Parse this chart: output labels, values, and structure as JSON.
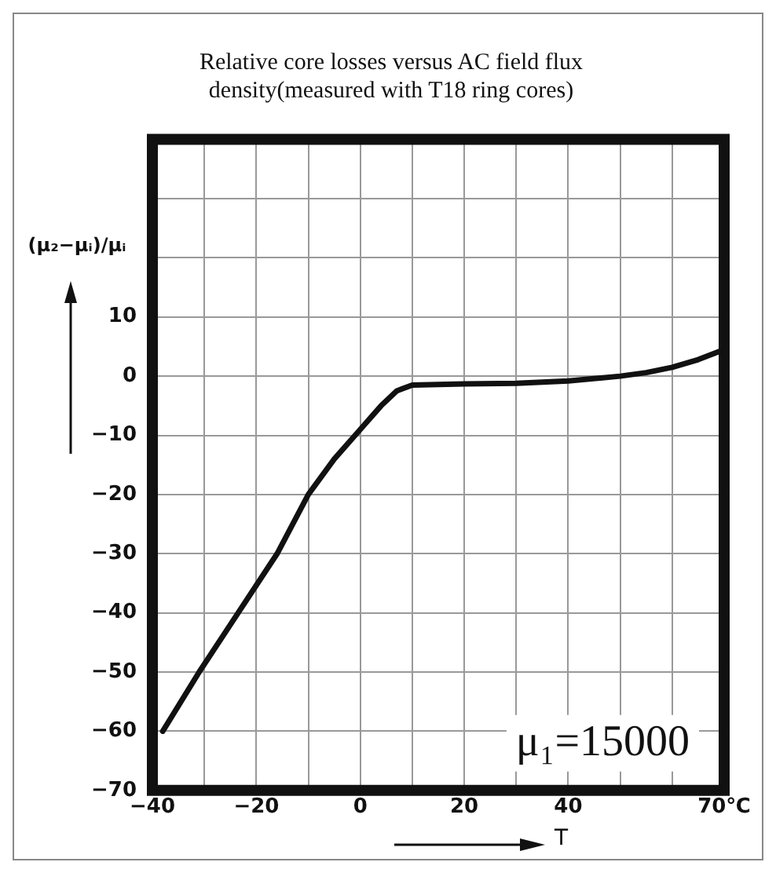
{
  "chart_data": {
    "type": "line",
    "title": "Relative core losses versus AC field flux density(measured with T18 ring cores)",
    "ylabel": "(μ₂−μᵢ)/μᵢ",
    "xlabel": "T",
    "x": [
      -38,
      -31,
      -23.5,
      -16,
      -10,
      -5,
      0,
      4,
      7,
      10,
      20,
      30,
      40,
      50,
      55,
      60,
      65,
      70
    ],
    "series": [
      {
        "color": "#111111",
        "values": [
          -60,
          -50,
          -40,
          -30,
          -20,
          -14,
          -9,
          -5,
          -2.5,
          -1.5,
          -1.3,
          -1.2,
          -0.8,
          0,
          0.6,
          1.5,
          2.8,
          4.5
        ]
      }
    ],
    "xlim": [
      -40,
      70
    ],
    "xticks": [
      -40,
      {
        "value": -30,
        "label": null
      },
      -20,
      {
        "value": -10,
        "label": null
      },
      0,
      {
        "value": 10,
        "label": null
      },
      20,
      {
        "value": 30,
        "label": null
      },
      40,
      {
        "value": 50,
        "label": null
      },
      {
        "value": 60,
        "label": null
      },
      {
        "value": 70,
        "label": "70℃"
      }
    ],
    "ylim": [
      -70,
      40
    ],
    "yticks": [
      -70,
      -60,
      -50,
      -40,
      -30,
      -20,
      -10,
      0,
      10,
      {
        "value": 20,
        "label": null
      },
      {
        "value": 30,
        "label": null
      }
    ],
    "annotations": [
      "μ₁=15000"
    ],
    "grid": true,
    "legend": false,
    "marker": "none",
    "line_style": "solid"
  }
}
